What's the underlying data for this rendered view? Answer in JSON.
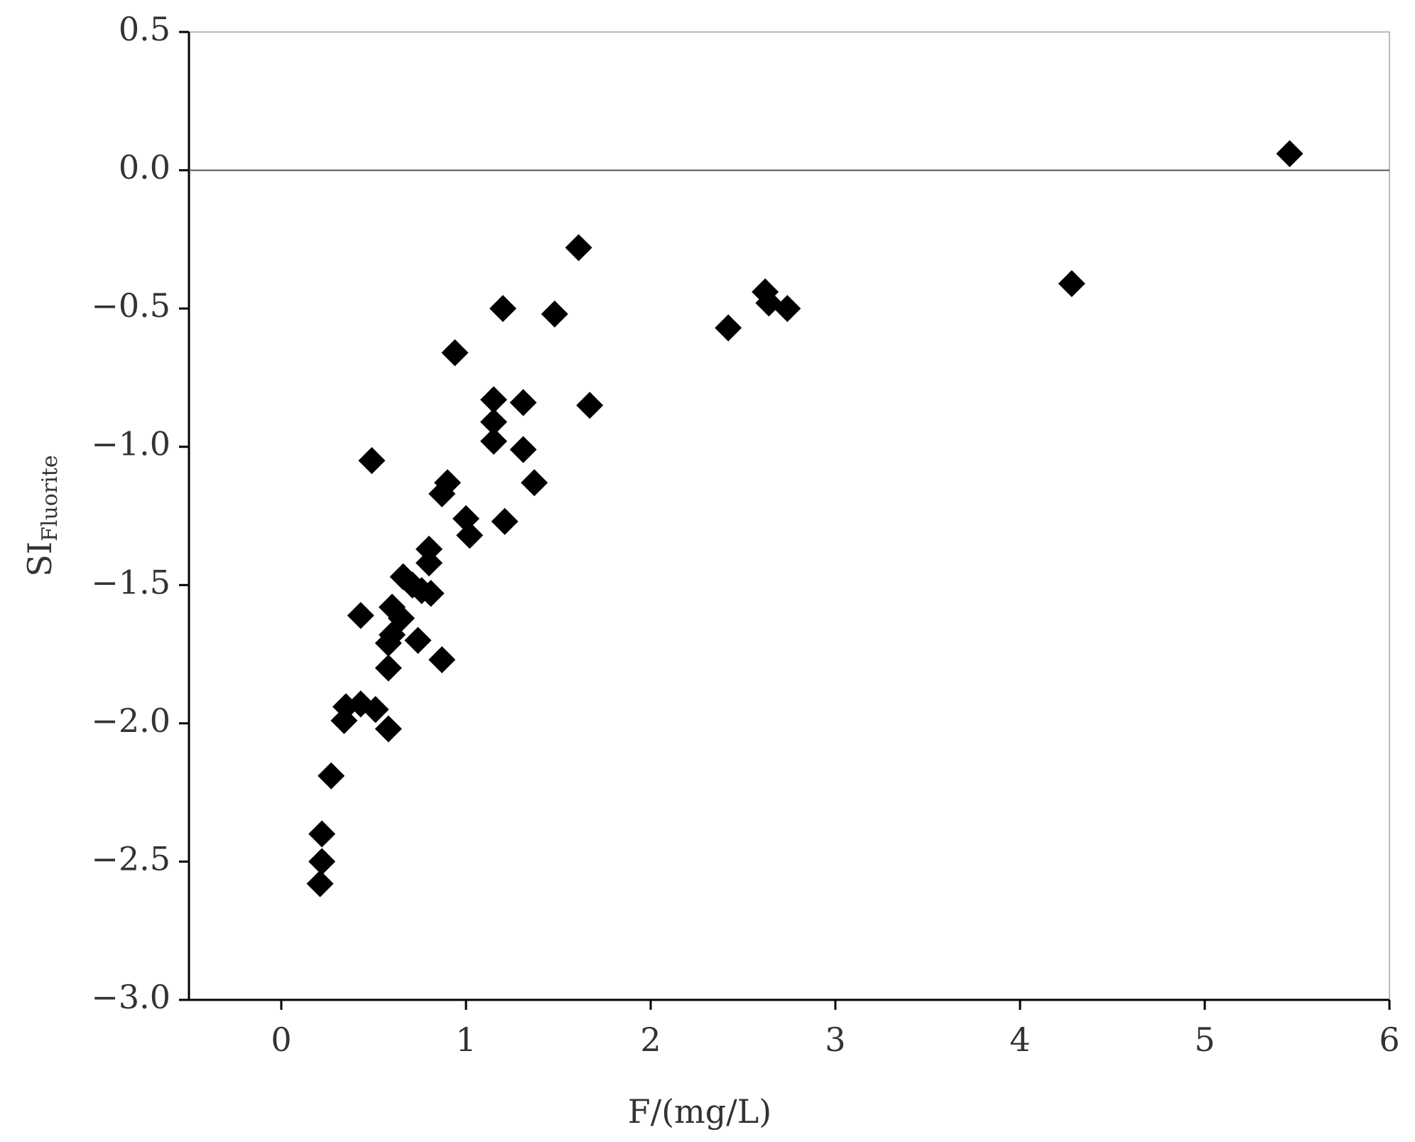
{
  "chart_data": {
    "type": "scatter",
    "x_label": "F/(mg/L)",
    "y_label": {
      "main": "SI",
      "sub": "Fluorite"
    },
    "xlim": [
      -0.5,
      6
    ],
    "ylim": [
      -3.0,
      0.5
    ],
    "xticks": [
      0,
      1,
      2,
      3,
      4,
      5,
      6
    ],
    "yticks": [
      0.5,
      {
        "value": 0,
        "label": "0.0"
      },
      {
        "value": -0.5,
        "label": "−0.5"
      },
      {
        "value": -1,
        "label": "−1.0"
      },
      {
        "value": -1.5,
        "label": "−1.5"
      },
      {
        "value": -2,
        "label": "−2.0"
      },
      {
        "value": -2.5,
        "label": "−2.5"
      },
      {
        "value": -3,
        "label": "−3.0"
      }
    ],
    "hline": 0,
    "color": "#000000",
    "x": [
      5.46,
      1.61,
      4.28,
      1.2,
      1.48,
      2.42,
      2.62,
      2.64,
      2.74,
      0.94,
      1.15,
      1.31,
      1.67,
      1.15,
      1.15,
      1.31,
      0.49,
      1.37,
      0.9,
      0.87,
      1.0,
      1.21,
      1.02,
      0.8,
      0.8,
      0.66,
      0.71,
      0.76,
      0.81,
      0.43,
      0.6,
      0.65,
      0.6,
      0.74,
      0.58,
      0.87,
      0.58,
      0.35,
      0.43,
      0.51,
      0.34,
      0.58,
      0.27,
      0.22,
      0.22,
      0.21
    ],
    "values": [
      0.06,
      -0.28,
      -0.41,
      -0.5,
      -0.52,
      -0.57,
      -0.44,
      -0.48,
      -0.5,
      -0.66,
      -0.83,
      -0.84,
      -0.85,
      -0.91,
      -0.98,
      -1.01,
      -1.05,
      -1.13,
      -1.13,
      -1.17,
      -1.26,
      -1.27,
      -1.32,
      -1.37,
      -1.42,
      -1.47,
      -1.5,
      -1.52,
      -1.53,
      -1.61,
      -1.58,
      -1.62,
      -1.68,
      -1.7,
      -1.71,
      -1.77,
      -1.8,
      -1.94,
      -1.93,
      -1.95,
      -1.99,
      -2.02,
      -2.19,
      -2.4,
      -2.5,
      -2.58
    ]
  }
}
